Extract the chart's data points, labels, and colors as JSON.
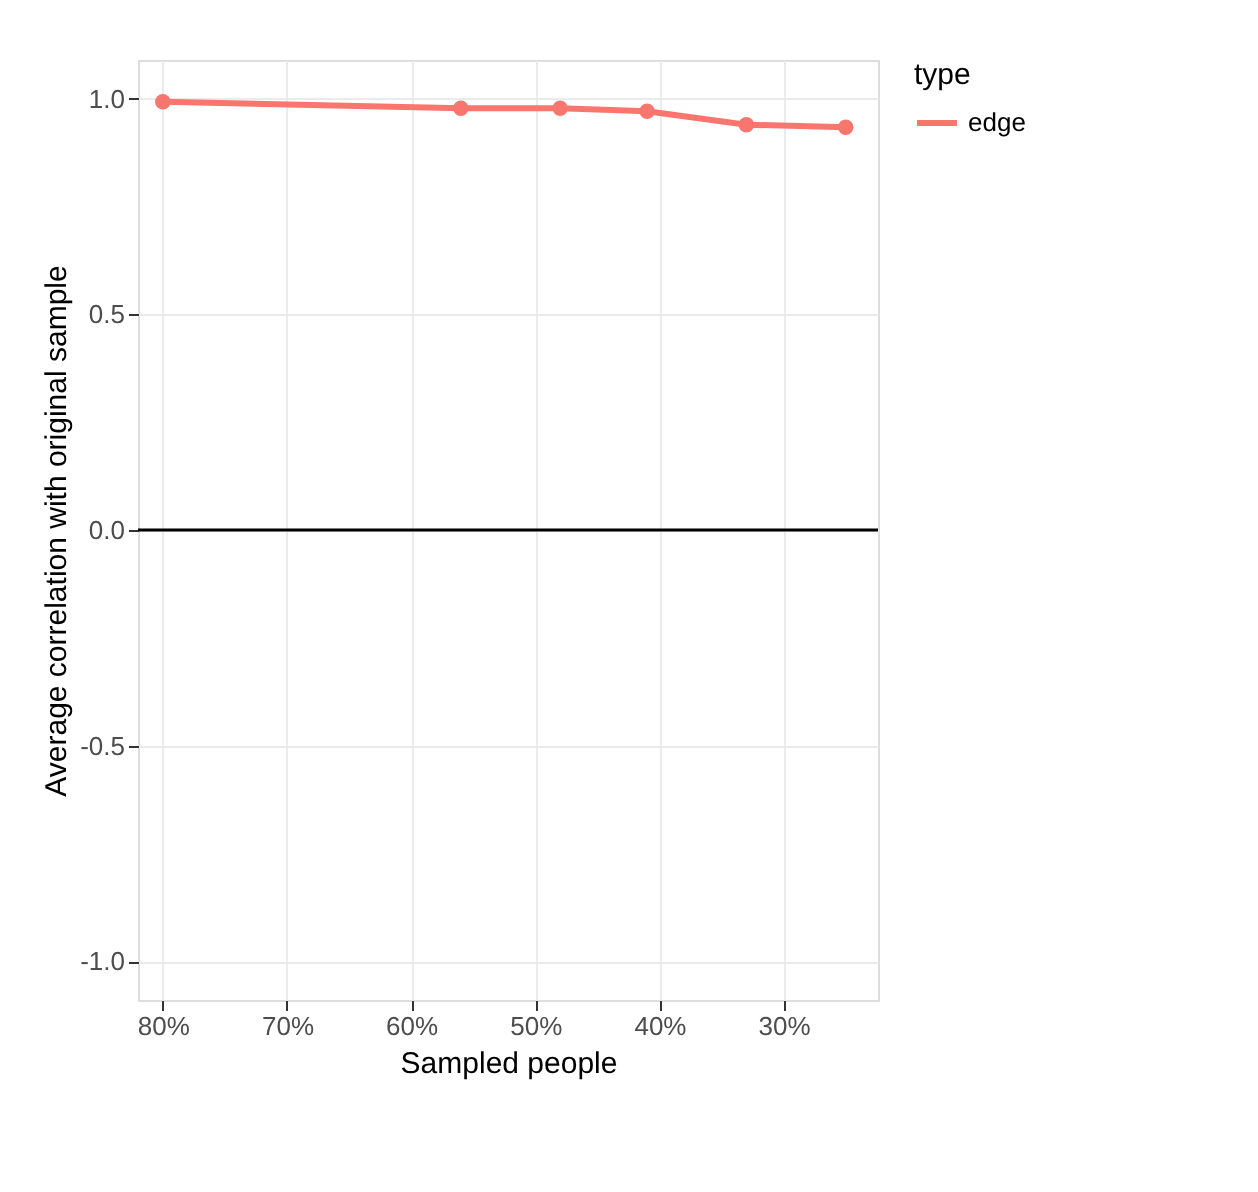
{
  "chart_data": {
    "type": "line",
    "xlabel": "Sampled people",
    "ylabel": "Average correlation with original sample",
    "legend_title": "type",
    "x": [
      80,
      56,
      48,
      41,
      33,
      25
    ],
    "series": [
      {
        "name": "edge",
        "color": "#f8766d",
        "values": [
          0.993,
          0.978,
          0.978,
          0.971,
          0.94,
          0.934
        ]
      }
    ],
    "xlim": [
      82,
      22.4
    ],
    "xticks": [
      {
        "value": 80,
        "label": "80%"
      },
      {
        "value": 70,
        "label": "70%"
      },
      {
        "value": 60,
        "label": "60%"
      },
      {
        "value": 50,
        "label": "50%"
      },
      {
        "value": 40,
        "label": "40%"
      },
      {
        "value": 30,
        "label": "30%"
      }
    ],
    "ylim": [
      -1.09,
      1.09
    ],
    "yticks": [
      {
        "value": -1,
        "label": "-1.0"
      },
      {
        "value": -0.5,
        "label": "-0.5"
      },
      {
        "value": 0,
        "label": "0.0"
      },
      {
        "value": 0.5,
        "label": "0.5"
      },
      {
        "value": 1,
        "label": "1.0"
      }
    ],
    "ref_lines": [
      {
        "axis": "y",
        "value": 0,
        "color": "#000000"
      }
    ],
    "grid": true,
    "legend": "right",
    "marker": "circle",
    "line_style": "solid"
  }
}
